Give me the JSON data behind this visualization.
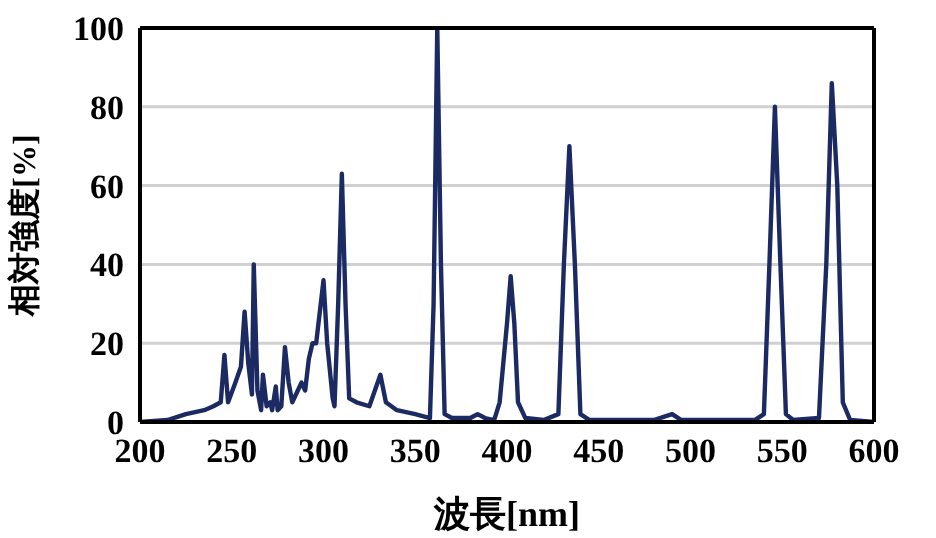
{
  "chart_data": {
    "type": "line",
    "xlabel": "波長[nm]",
    "ylabel": "相対強度[%]",
    "xlim": [
      200,
      600
    ],
    "xticks": [
      200,
      250,
      300,
      350,
      400,
      450,
      500,
      550,
      600
    ],
    "ylim": [
      0,
      100
    ],
    "yticks": [
      0,
      20,
      40,
      60,
      80,
      100
    ],
    "grid": "y",
    "legend": false,
    "marker": "none",
    "line_style": "solid",
    "series": [
      {
        "color": "#1b2a63",
        "x": [
          200,
          215,
          225,
          235,
          240,
          244,
          246,
          248,
          252,
          255,
          257,
          259,
          261,
          262,
          264,
          266,
          267,
          269,
          271,
          272,
          274,
          275,
          277,
          279,
          281,
          283,
          286,
          288,
          290,
          292,
          294,
          296,
          298,
          300,
          302,
          305,
          306,
          308,
          310,
          312,
          314,
          318,
          325,
          328,
          331,
          334,
          340,
          350,
          358,
          360,
          362,
          364,
          366,
          370,
          380,
          384,
          388,
          393,
          396,
          400,
          402,
          404,
          406,
          410,
          420,
          428,
          431,
          434,
          437,
          440,
          445,
          480,
          490,
          495,
          535,
          540,
          543,
          546,
          549,
          552,
          556,
          570,
          574,
          577,
          580,
          583,
          587,
          600
        ],
        "values": [
          0,
          0.5,
          2,
          3,
          4,
          5,
          17,
          5,
          10,
          14,
          28,
          15,
          7,
          40,
          8,
          3,
          12,
          4,
          5,
          3,
          9,
          3,
          4,
          19,
          10,
          5,
          8,
          10,
          8,
          16,
          20,
          20,
          28,
          36,
          20,
          6,
          4,
          30,
          63,
          30,
          6,
          5,
          4,
          8,
          12,
          5,
          3,
          2,
          1,
          30,
          100,
          40,
          2,
          1,
          1,
          2,
          1,
          0.5,
          5,
          25,
          37,
          25,
          5,
          1,
          0.5,
          2,
          40,
          70,
          40,
          2,
          0.5,
          0.5,
          2,
          0.5,
          0.5,
          2,
          40,
          80,
          40,
          2,
          0.5,
          1,
          40,
          86,
          60,
          5,
          0.5,
          0
        ]
      }
    ]
  }
}
